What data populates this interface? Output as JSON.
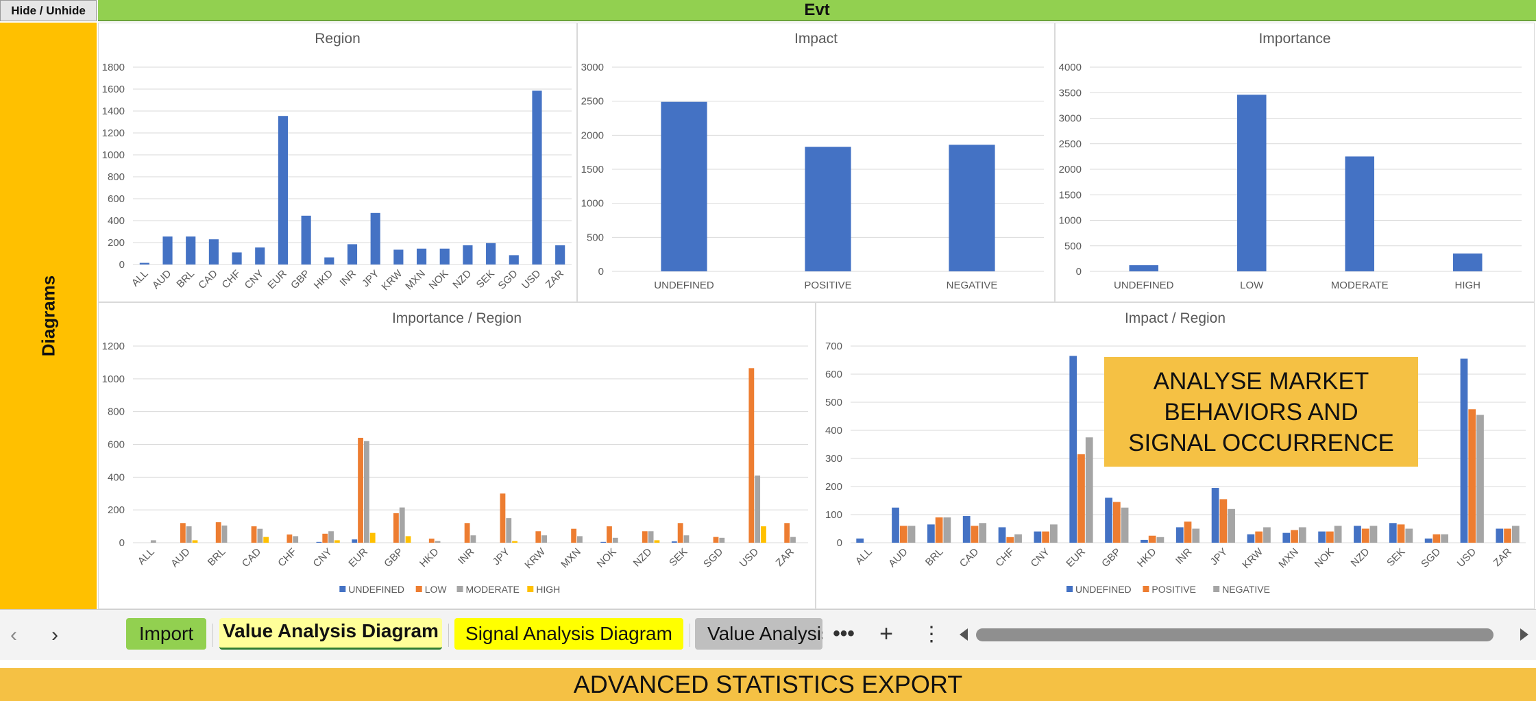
{
  "header": {
    "hide_button": "Hide / Unhide",
    "banner_title": "Evt"
  },
  "sidebar": {
    "label": "Diagrams"
  },
  "overlay": {
    "text": "ANALYSE MARKET\nBEHAVIORS AND\nSIGNAL OCCURRENCE"
  },
  "tabs": {
    "prev_icon": "chevron-left-icon",
    "next_icon": "chevron-right-icon",
    "items": [
      {
        "label": "Import",
        "color": "#92d050"
      },
      {
        "label": "Value Analysis Diagram",
        "color": "#ffff99",
        "active": true
      },
      {
        "label": "Signal Analysis Diagram",
        "color": "#ffff00"
      },
      {
        "label": "Value Analysis",
        "color": "#bfbfbf"
      }
    ],
    "more_icon": "ellipsis-icon",
    "add_icon": "plus-icon",
    "menu_icon": "vertical-dots-icon"
  },
  "footer": {
    "banner_text": "ADVANCED STATISTICS EXPORT"
  },
  "colors": {
    "blue": "#4472c4",
    "orange": "#ed7d31",
    "gray": "#a5a5a5",
    "yellow": "#ffc000"
  },
  "chart_data": [
    {
      "type": "bar",
      "title": "Region",
      "categories": [
        "ALL",
        "AUD",
        "BRL",
        "CAD",
        "CHF",
        "CNY",
        "EUR",
        "GBP",
        "HKD",
        "INR",
        "JPY",
        "KRW",
        "MXN",
        "NOK",
        "NZD",
        "SEK",
        "SGD",
        "USD",
        "ZAR"
      ],
      "series": [
        {
          "values": [
            15,
            255,
            255,
            230,
            110,
            155,
            1355,
            445,
            65,
            185,
            470,
            135,
            145,
            145,
            175,
            195,
            85,
            1585,
            175
          ],
          "color": "#4472c4"
        }
      ],
      "ylim": [
        0,
        1800
      ],
      "yticks": [
        0,
        200,
        400,
        600,
        800,
        1000,
        1200,
        1400,
        1600,
        1800
      ],
      "grid": true,
      "rotate_x": true
    },
    {
      "type": "bar",
      "title": "Impact",
      "categories": [
        "UNDEFINED",
        "POSITIVE",
        "NEGATIVE"
      ],
      "series": [
        {
          "values": [
            2490,
            1830,
            1860
          ],
          "color": "#4472c4"
        }
      ],
      "ylim": [
        0,
        3000
      ],
      "yticks": [
        0,
        500,
        1000,
        1500,
        2000,
        2500,
        3000
      ],
      "grid": true,
      "rotate_x": false
    },
    {
      "type": "bar",
      "title": "Importance",
      "categories": [
        "UNDEFINED",
        "LOW",
        "MODERATE",
        "HIGH"
      ],
      "series": [
        {
          "values": [
            120,
            3460,
            2250,
            350
          ],
          "color": "#4472c4"
        }
      ],
      "ylim": [
        0,
        4000
      ],
      "yticks": [
        0,
        500,
        1000,
        1500,
        2000,
        2500,
        3000,
        3500,
        4000
      ],
      "grid": true,
      "rotate_x": false
    },
    {
      "type": "bar",
      "title": "Importance / Region",
      "categories": [
        "ALL",
        "AUD",
        "BRL",
        "CAD",
        "CHF",
        "CNY",
        "EUR",
        "GBP",
        "HKD",
        "INR",
        "JPY",
        "KRW",
        "MXN",
        "NOK",
        "NZD",
        "SEK",
        "SGD",
        "USD",
        "ZAR"
      ],
      "series": [
        {
          "name": "UNDEFINED",
          "color": "#4472c4",
          "values": [
            0,
            0,
            0,
            0,
            0,
            5,
            20,
            0,
            0,
            0,
            0,
            0,
            0,
            5,
            0,
            8,
            0,
            0,
            0
          ]
        },
        {
          "name": "LOW",
          "color": "#ed7d31",
          "values": [
            0,
            120,
            125,
            100,
            50,
            55,
            640,
            180,
            25,
            120,
            300,
            70,
            85,
            100,
            70,
            120,
            35,
            1065,
            120
          ]
        },
        {
          "name": "MODERATE",
          "color": "#a5a5a5",
          "values": [
            15,
            100,
            105,
            85,
            40,
            70,
            620,
            215,
            10,
            45,
            150,
            45,
            40,
            30,
            70,
            45,
            30,
            410,
            35
          ]
        },
        {
          "name": "HIGH",
          "color": "#ffc000",
          "values": [
            0,
            15,
            0,
            35,
            0,
            15,
            60,
            40,
            0,
            0,
            10,
            0,
            0,
            0,
            15,
            0,
            0,
            100,
            0
          ]
        }
      ],
      "ylim": [
        0,
        1200
      ],
      "yticks": [
        0,
        200,
        400,
        600,
        800,
        1000,
        1200
      ],
      "grid": true,
      "rotate_x": true
    },
    {
      "type": "bar",
      "title": "Impact / Region",
      "categories": [
        "ALL",
        "AUD",
        "BRL",
        "CAD",
        "CHF",
        "CNY",
        "EUR",
        "GBP",
        "HKD",
        "INR",
        "JPY",
        "KRW",
        "MXN",
        "NOK",
        "NZD",
        "SEK",
        "SGD",
        "USD",
        "ZAR"
      ],
      "series": [
        {
          "name": "UNDEFINED",
          "color": "#4472c4",
          "values": [
            15,
            125,
            65,
            95,
            55,
            40,
            665,
            160,
            10,
            55,
            195,
            30,
            35,
            40,
            60,
            70,
            15,
            655,
            50
          ]
        },
        {
          "name": "POSITIVE",
          "color": "#ed7d31",
          "values": [
            0,
            60,
            90,
            60,
            20,
            40,
            315,
            145,
            25,
            75,
            155,
            40,
            45,
            40,
            50,
            65,
            30,
            475,
            50
          ]
        },
        {
          "name": "NEGATIVE",
          "color": "#a5a5a5",
          "values": [
            0,
            60,
            90,
            70,
            30,
            65,
            375,
            125,
            20,
            50,
            120,
            55,
            55,
            60,
            60,
            50,
            30,
            455,
            60
          ]
        }
      ],
      "ylim": [
        0,
        700
      ],
      "yticks": [
        0,
        100,
        200,
        300,
        400,
        500,
        600,
        700
      ],
      "grid": true,
      "rotate_x": true
    }
  ]
}
